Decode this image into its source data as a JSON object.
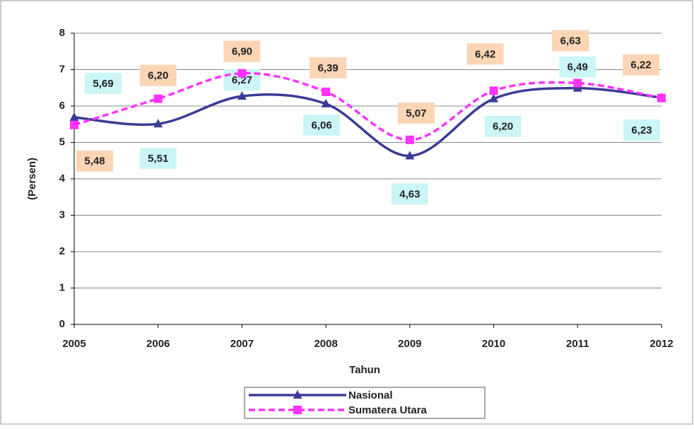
{
  "chart_data": {
    "type": "line",
    "x_label": "Tahun",
    "y_label": "(Persen)",
    "categories": [
      "2005",
      "2006",
      "2007",
      "2008",
      "2009",
      "2010",
      "2011",
      "2012"
    ],
    "series": [
      {
        "name": "Nasional",
        "color": "#3b3b96",
        "marker": "triangle",
        "dashed": false,
        "label_color": "#ccf5f5",
        "values": [
          5.69,
          5.51,
          6.27,
          6.06,
          4.63,
          6.2,
          6.49,
          6.23
        ],
        "value_labels": [
          "5,69",
          "5,51",
          "6,27",
          "6,06",
          "4,63",
          "6,20",
          "6,49",
          "6,23"
        ]
      },
      {
        "name": "Sumatera Utara",
        "color": "#ff33ff",
        "marker": "square",
        "dashed": true,
        "label_color": "#fbd5b5",
        "values": [
          5.48,
          6.2,
          6.9,
          6.39,
          5.07,
          6.42,
          6.63,
          6.22
        ],
        "value_labels": [
          "5,48",
          "6,20",
          "6,90",
          "6,39",
          "5,07",
          "6,42",
          "6,63",
          "6,22"
        ]
      }
    ],
    "ylim": [
      0,
      8
    ],
    "yticks": [
      0,
      1,
      2,
      3,
      4,
      5,
      6,
      7,
      8
    ],
    "grid": true,
    "smooth": true
  }
}
